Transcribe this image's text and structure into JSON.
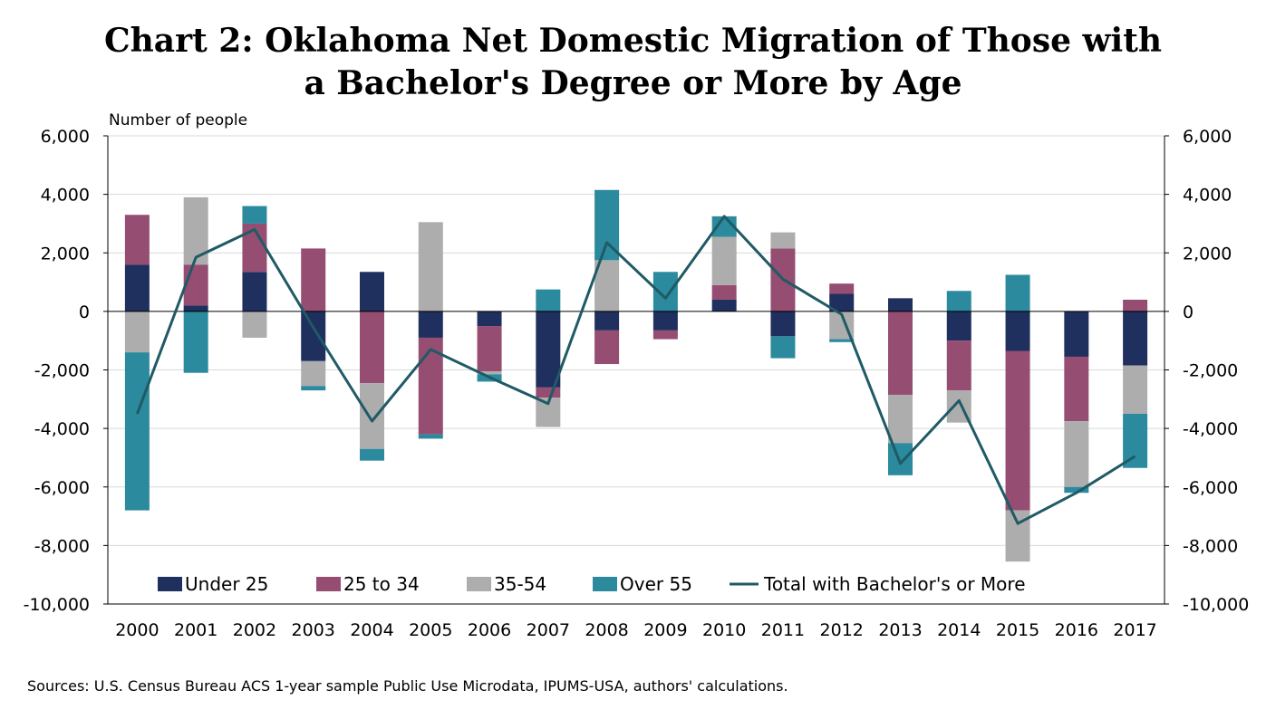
{
  "title_line1": "Chart 2: Oklahoma Net Domestic Migration of Those with",
  "title_line2": "a Bachelor's Degree or More by Age",
  "source": "Sources: U.S. Census Bureau ACS 1-year sample Public Use Microdata, IPUMS-USA, authors' calculations.",
  "colors": {
    "under25": "#1f2f5e",
    "age25to34": "#954d72",
    "age35to54": "#adadad",
    "over55": "#2b8a9d",
    "total": "#1f5a66"
  },
  "chart_data": {
    "type": "bar",
    "stacked": true,
    "title": "Chart 2: Oklahoma Net Domestic Migration of Those with a Bachelor's Degree or More by Age",
    "ylabel": "Number of people",
    "xlabel": "",
    "ylim": [
      -10000,
      6000
    ],
    "yticks": [
      6000,
      4000,
      2000,
      0,
      -2000,
      -4000,
      -6000,
      -8000,
      -10000
    ],
    "ytick_labels": [
      "6,000",
      "4,000",
      "2,000",
      "0",
      "-2,000",
      "-4,000",
      "-6,000",
      "-8,000",
      "-10,000"
    ],
    "secondary_y": true,
    "grid": true,
    "legend_position": "bottom-inside",
    "categories": [
      "2000",
      "2001",
      "2002",
      "2003",
      "2004",
      "2005",
      "2006",
      "2007",
      "2008",
      "2009",
      "2010",
      "2011",
      "2012",
      "2013",
      "2014",
      "2015",
      "2016",
      "2017"
    ],
    "series": [
      {
        "name": "Under 25",
        "key": "under25",
        "type": "bar",
        "values": [
          1600,
          200,
          1350,
          -1700,
          1350,
          -900,
          -500,
          -2600,
          -650,
          -650,
          400,
          -850,
          600,
          450,
          -1000,
          -1350,
          -1550,
          -1850
        ]
      },
      {
        "name": "25 to 34",
        "key": "age25to34",
        "type": "bar",
        "values": [
          1700,
          1400,
          1650,
          2150,
          -2450,
          -3300,
          -1550,
          -350,
          -1150,
          -300,
          500,
          2150,
          350,
          -2850,
          -1700,
          -5450,
          -2200,
          400
        ]
      },
      {
        "name": "35-54",
        "key": "age35to54",
        "type": "bar",
        "values": [
          -1400,
          2300,
          -900,
          -850,
          -2250,
          3050,
          -100,
          -1000,
          1750,
          0,
          1650,
          550,
          -950,
          -1650,
          -1100,
          -1750,
          -2250,
          -1650
        ]
      },
      {
        "name": "Over 55",
        "key": "over55",
        "type": "bar",
        "values": [
          -5400,
          -2100,
          600,
          -150,
          -400,
          -150,
          -250,
          750,
          2400,
          1350,
          700,
          -750,
          -100,
          -1100,
          700,
          1250,
          -200,
          -1850
        ]
      },
      {
        "name": "Total with Bachelor's or More",
        "key": "total",
        "type": "line",
        "values": [
          -3500,
          1850,
          2800,
          -550,
          -3750,
          -1300,
          -2250,
          -3150,
          2350,
          450,
          3250,
          1100,
          -100,
          -5200,
          -3050,
          -7250,
          -6200,
          -4950
        ]
      }
    ]
  }
}
